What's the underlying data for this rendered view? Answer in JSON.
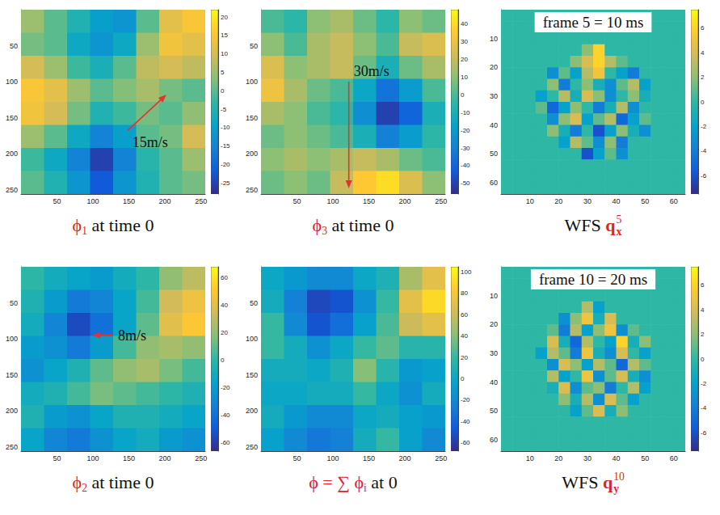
{
  "chart_data": [
    {
      "type": "heatmap",
      "caption": [
        {
          "text": "ϕ",
          "color": "#d9262b",
          "sub": "1"
        },
        {
          "text": " at time 0"
        }
      ],
      "xlim": [
        0,
        256
      ],
      "ylim": [
        0,
        256
      ],
      "xticks": [
        50,
        100,
        150,
        200,
        250
      ],
      "yticks": [
        50,
        100,
        150,
        200,
        250
      ],
      "cells": [
        [
          5,
          0,
          -5,
          -10,
          -12,
          0,
          12,
          15
        ],
        [
          2,
          0,
          -8,
          -12,
          -8,
          5,
          14,
          12
        ],
        [
          10,
          5,
          -2,
          -6,
          0,
          8,
          10,
          8
        ],
        [
          15,
          12,
          5,
          0,
          3,
          6,
          2,
          0
        ],
        [
          14,
          10,
          2,
          -5,
          -2,
          2,
          0,
          4
        ],
        [
          5,
          0,
          -8,
          -15,
          -10,
          0,
          2,
          10
        ],
        [
          -2,
          -8,
          -15,
          -25,
          -15,
          -4,
          0,
          5
        ],
        [
          0,
          -5,
          -12,
          -22,
          -12,
          -5,
          0,
          2
        ]
      ],
      "colorbar": {
        "lim": [
          -28,
          22
        ],
        "ticks": [
          -25,
          -20,
          -15,
          -10,
          -5,
          0,
          5,
          10,
          15,
          20
        ]
      },
      "annotations": [
        {
          "text": "15m/s",
          "from": [
            148,
            168
          ],
          "to": [
            202,
            118
          ],
          "color": "#e8312c"
        }
      ]
    },
    {
      "type": "heatmap",
      "caption": [
        {
          "text": "ϕ",
          "color": "#d9262b",
          "sub": "3"
        },
        {
          "text": " at time 0"
        }
      ],
      "xlim": [
        0,
        256
      ],
      "ylim": [
        0,
        256
      ],
      "xticks": [
        50,
        100,
        150,
        200,
        250
      ],
      "yticks": [
        50,
        100,
        150,
        200,
        250
      ],
      "cells": [
        [
          0,
          -5,
          10,
          15,
          5,
          -5,
          10,
          5
        ],
        [
          10,
          0,
          15,
          20,
          10,
          0,
          20,
          25
        ],
        [
          25,
          10,
          15,
          20,
          5,
          -10,
          5,
          15
        ],
        [
          30,
          15,
          5,
          0,
          -15,
          -35,
          -20,
          0
        ],
        [
          15,
          10,
          0,
          -5,
          -25,
          -50,
          -40,
          -10
        ],
        [
          5,
          10,
          5,
          0,
          -10,
          -30,
          -20,
          -5
        ],
        [
          10,
          15,
          10,
          15,
          20,
          15,
          5,
          0
        ],
        [
          5,
          10,
          5,
          20,
          35,
          40,
          25,
          10
        ]
      ],
      "colorbar": {
        "lim": [
          -56,
          48
        ],
        "ticks": [
          -50,
          -40,
          -30,
          -20,
          -10,
          0,
          10,
          20,
          30,
          40
        ]
      },
      "annotations": [
        {
          "text": "30m/s",
          "from": [
            122,
            100
          ],
          "to": [
            122,
            248
          ],
          "color": "#e8312c"
        }
      ]
    },
    {
      "type": "heatmap",
      "caption": [
        {
          "text": "WFS "
        },
        {
          "text": "q",
          "color": "#d9262b",
          "sub": "x",
          "sup": "5"
        }
      ],
      "xlim": [
        0,
        64
      ],
      "ylim": [
        0,
        64
      ],
      "xticks": [
        10,
        20,
        30,
        40,
        50,
        60
      ],
      "yticks": [
        10,
        20,
        30,
        40,
        50,
        60
      ],
      "cells": [
        [
          0,
          0,
          0,
          0,
          0,
          0,
          0,
          0,
          0,
          0,
          0,
          0,
          0,
          0,
          0,
          0
        ],
        [
          0,
          0,
          0,
          0,
          0,
          0,
          0,
          0,
          0,
          0,
          0,
          0,
          0,
          0,
          0,
          0
        ],
        [
          0,
          0,
          0,
          0,
          0,
          0,
          0,
          0,
          0,
          0,
          0,
          0,
          0,
          0,
          0,
          0
        ],
        [
          0,
          0,
          0,
          0,
          0,
          0,
          0,
          2,
          6,
          0,
          0,
          0,
          0,
          0,
          0,
          0
        ],
        [
          0,
          0,
          0,
          0,
          0,
          0,
          2,
          4,
          6,
          3,
          1,
          0,
          0,
          0,
          0,
          0
        ],
        [
          0,
          0,
          0,
          0,
          -3,
          1,
          -2,
          3,
          5,
          0,
          -2,
          -4,
          0,
          0,
          0,
          0
        ],
        [
          0,
          0,
          0,
          0,
          2,
          -4,
          0,
          2,
          -1,
          -3,
          1,
          3,
          -2,
          0,
          0,
          0
        ],
        [
          0,
          0,
          0,
          -2,
          0,
          3,
          -1,
          4,
          2,
          -3,
          0,
          2,
          -1,
          0,
          0,
          0
        ],
        [
          0,
          0,
          0,
          1,
          -5,
          -2,
          2,
          0,
          -4,
          -1,
          3,
          -3,
          0,
          0,
          0,
          0
        ],
        [
          0,
          0,
          0,
          0,
          -3,
          2,
          4,
          -2,
          1,
          3,
          -5,
          -2,
          1,
          0,
          0,
          0
        ],
        [
          0,
          0,
          0,
          0,
          2,
          -1,
          -4,
          0,
          -6,
          -2,
          2,
          -1,
          -3,
          0,
          0,
          0
        ],
        [
          0,
          0,
          0,
          0,
          0,
          -2,
          3,
          1,
          -3,
          2,
          -4,
          0,
          0,
          0,
          0,
          0
        ],
        [
          0,
          0,
          0,
          0,
          0,
          0,
          0,
          -6,
          -2,
          1,
          -3,
          0,
          0,
          0,
          0,
          0
        ],
        [
          0,
          0,
          0,
          0,
          0,
          0,
          0,
          0,
          0,
          0,
          0,
          0,
          0,
          0,
          0,
          0
        ],
        [
          0,
          0,
          0,
          0,
          0,
          0,
          0,
          0,
          0,
          0,
          0,
          0,
          0,
          0,
          0,
          0
        ],
        [
          0,
          0,
          0,
          0,
          0,
          0,
          0,
          0,
          0,
          0,
          0,
          0,
          0,
          0,
          0,
          0
        ]
      ],
      "colorbar": {
        "lim": [
          -7.5,
          7.5
        ],
        "ticks": [
          -6,
          -4,
          -2,
          0,
          2,
          4,
          6
        ]
      },
      "annotations": [
        {
          "text": "frame 5 = 10 ms"
        }
      ]
    },
    {
      "type": "heatmap",
      "caption": [
        {
          "text": "ϕ",
          "color": "#d9262b",
          "sub": "2"
        },
        {
          "text": " at time 0"
        }
      ],
      "xlim": [
        0,
        256
      ],
      "ylim": [
        0,
        256
      ],
      "xticks": [
        50,
        100,
        150,
        200,
        250
      ],
      "yticks": [
        50,
        100,
        150,
        200,
        250
      ],
      "cells": [
        [
          0,
          -10,
          -15,
          -20,
          -10,
          0,
          20,
          30
        ],
        [
          -5,
          -20,
          -35,
          -30,
          -15,
          5,
          35,
          45
        ],
        [
          -10,
          -30,
          -55,
          -40,
          -15,
          10,
          40,
          50
        ],
        [
          -20,
          -25,
          -35,
          -20,
          5,
          20,
          25,
          20
        ],
        [
          -25,
          -15,
          -5,
          10,
          20,
          25,
          15,
          5
        ],
        [
          -10,
          -5,
          5,
          15,
          10,
          5,
          0,
          -5
        ],
        [
          -5,
          -20,
          -25,
          -15,
          -5,
          -5,
          -10,
          -15
        ],
        [
          -15,
          -30,
          -35,
          -25,
          -15,
          -10,
          -20,
          -25
        ]
      ],
      "colorbar": {
        "lim": [
          -66,
          68
        ],
        "ticks": [
          -60,
          -40,
          -20,
          0,
          20,
          40,
          60
        ]
      },
      "annotations": [
        {
          "text": "8m/s",
          "from": [
            128,
            95
          ],
          "to": [
            99,
            95
          ],
          "color": "#e8312c"
        }
      ]
    },
    {
      "type": "heatmap",
      "caption": [
        {
          "text": "ϕ = ∑ ϕ",
          "color": "#d9262b",
          "sub": "i"
        },
        {
          "text": " at 0"
        }
      ],
      "xlim": [
        0,
        256
      ],
      "ylim": [
        0,
        256
      ],
      "xticks": [
        50,
        100,
        150,
        200,
        250
      ],
      "yticks": [
        50,
        100,
        150,
        200,
        250
      ],
      "cells": [
        [
          0,
          -10,
          -20,
          -20,
          0,
          10,
          50,
          70
        ],
        [
          5,
          -25,
          -55,
          -50,
          -15,
          20,
          70,
          90
        ],
        [
          20,
          -20,
          -50,
          -35,
          -5,
          25,
          60,
          70
        ],
        [
          20,
          5,
          -15,
          0,
          20,
          30,
          15,
          15
        ],
        [
          5,
          5,
          0,
          10,
          40,
          15,
          -10,
          -5
        ],
        [
          0,
          0,
          5,
          5,
          20,
          0,
          -15,
          5
        ],
        [
          5,
          -10,
          -20,
          -20,
          0,
          5,
          -5,
          -10
        ],
        [
          -5,
          -20,
          -30,
          -25,
          5,
          20,
          -5,
          -20
        ]
      ],
      "colorbar": {
        "lim": [
          -68,
          105
        ],
        "ticks": [
          -60,
          -40,
          -20,
          0,
          20,
          40,
          60,
          80,
          100
        ]
      }
    },
    {
      "type": "heatmap",
      "caption": [
        {
          "text": "WFS "
        },
        {
          "text": "q",
          "color": "#d9262b",
          "sub": "y",
          "sup": "10"
        }
      ],
      "xlim": [
        0,
        64
      ],
      "ylim": [
        0,
        64
      ],
      "xticks": [
        10,
        20,
        30,
        40,
        50,
        60
      ],
      "yticks": [
        10,
        20,
        30,
        40,
        50,
        60
      ],
      "cells": [
        [
          0,
          0,
          0,
          0,
          0,
          0,
          0,
          0,
          0,
          0,
          0,
          0,
          0,
          0,
          0,
          0
        ],
        [
          0,
          0,
          0,
          0,
          0,
          0,
          0,
          0,
          0,
          0,
          0,
          0,
          0,
          0,
          0,
          0
        ],
        [
          0,
          0,
          0,
          0,
          0,
          0,
          0,
          0,
          0,
          0,
          0,
          0,
          0,
          0,
          0,
          0
        ],
        [
          0,
          0,
          0,
          0,
          0,
          0,
          0,
          3,
          -2,
          0,
          0,
          0,
          0,
          0,
          0,
          0
        ],
        [
          0,
          0,
          0,
          0,
          0,
          -3,
          2,
          5,
          -1,
          4,
          0,
          0,
          0,
          0,
          0,
          0
        ],
        [
          0,
          0,
          0,
          0,
          1,
          -4,
          3,
          -2,
          2,
          5,
          -3,
          1,
          0,
          0,
          0,
          0
        ],
        [
          0,
          0,
          0,
          0,
          4,
          -1,
          -5,
          3,
          0,
          -2,
          6,
          -1,
          2,
          0,
          0,
          0
        ],
        [
          0,
          0,
          0,
          -2,
          3,
          1,
          -4,
          5,
          -1,
          -3,
          4,
          0,
          -2,
          0,
          0,
          0
        ],
        [
          0,
          0,
          0,
          0,
          -3,
          4,
          2,
          -2,
          3,
          1,
          -5,
          3,
          1,
          0,
          0,
          0
        ],
        [
          0,
          0,
          0,
          0,
          3,
          -2,
          0,
          5,
          -3,
          1,
          4,
          -1,
          -3,
          0,
          0,
          0
        ],
        [
          0,
          0,
          0,
          0,
          -1,
          4,
          -3,
          1,
          2,
          -4,
          0,
          3,
          -2,
          0,
          0,
          0
        ],
        [
          0,
          0,
          0,
          0,
          0,
          2,
          -1,
          3,
          -3,
          4,
          1,
          -2,
          0,
          0,
          0,
          0
        ],
        [
          0,
          0,
          0,
          0,
          0,
          0,
          -2,
          1,
          4,
          -1,
          2,
          0,
          0,
          0,
          0,
          0
        ],
        [
          0,
          0,
          0,
          0,
          0,
          0,
          0,
          0,
          0,
          0,
          0,
          0,
          0,
          0,
          0,
          0
        ],
        [
          0,
          0,
          0,
          0,
          0,
          0,
          0,
          0,
          0,
          0,
          0,
          0,
          0,
          0,
          0,
          0
        ],
        [
          0,
          0,
          0,
          0,
          0,
          0,
          0,
          0,
          0,
          0,
          0,
          0,
          0,
          0,
          0,
          0
        ]
      ],
      "colorbar": {
        "lim": [
          -7.5,
          7.5
        ],
        "ticks": [
          -6,
          -4,
          -2,
          0,
          2,
          4,
          6
        ]
      },
      "annotations": [
        {
          "text": "frame 10 = 20 ms"
        }
      ]
    }
  ]
}
